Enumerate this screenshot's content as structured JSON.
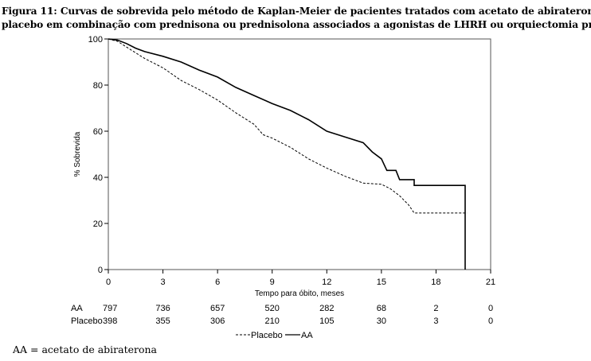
{
  "caption": {
    "line1": "Figura 11: Curvas de sobrevida pelo método de Kaplan-Meier de pacientes tratados com acetato de abiraterona ou",
    "line2": "placebo em combinação com prednisona ou prednisolona associados a agonistas de LHRH ou orquiectomia prévia."
  },
  "footnote": "AA = acetato de abiraterona",
  "chart_data": {
    "type": "line",
    "title": "",
    "xlabel": "Tempo para óbito, meses",
    "ylabel": "% Sobrevida",
    "xlim": [
      0,
      21
    ],
    "ylim": [
      0,
      100
    ],
    "xticks": [
      0,
      3,
      6,
      9,
      12,
      15,
      18,
      21
    ],
    "yticks": [
      0,
      20,
      40,
      60,
      80,
      100
    ],
    "grid": false,
    "legend": "bottom-center",
    "series": [
      {
        "name": "AA",
        "style": "solid",
        "color": "#000000",
        "points": [
          [
            0,
            100
          ],
          [
            0.5,
            99.5
          ],
          [
            1,
            98
          ],
          [
            1.5,
            96
          ],
          [
            2,
            94.5
          ],
          [
            3,
            92.5
          ],
          [
            4,
            90
          ],
          [
            5,
            86.5
          ],
          [
            6,
            83.5
          ],
          [
            7,
            79
          ],
          [
            8,
            75.5
          ],
          [
            9,
            72
          ],
          [
            10,
            69
          ],
          [
            11,
            65
          ],
          [
            12,
            60
          ],
          [
            13,
            57.5
          ],
          [
            14,
            55
          ],
          [
            14.5,
            51
          ],
          [
            15,
            48
          ],
          [
            15.3,
            43
          ],
          [
            15.8,
            43
          ],
          [
            16,
            39
          ],
          [
            16.8,
            39
          ],
          [
            16.8,
            36.5
          ],
          [
            19.6,
            36.5
          ],
          [
            19.6,
            0
          ]
        ]
      },
      {
        "name": "Placebo",
        "style": "dashed",
        "color": "#000000",
        "points": [
          [
            0,
            100
          ],
          [
            0.5,
            99
          ],
          [
            1,
            96.5
          ],
          [
            1.5,
            94
          ],
          [
            2,
            91.5
          ],
          [
            3,
            87.5
          ],
          [
            4,
            82
          ],
          [
            5,
            78
          ],
          [
            6,
            73.5
          ],
          [
            7,
            68
          ],
          [
            8,
            63
          ],
          [
            8.5,
            58.5
          ],
          [
            9,
            57
          ],
          [
            10,
            53
          ],
          [
            11,
            48
          ],
          [
            12,
            44
          ],
          [
            13,
            40.5
          ],
          [
            14,
            37.5
          ],
          [
            15,
            37
          ],
          [
            15.5,
            35
          ],
          [
            16,
            32
          ],
          [
            16.5,
            28
          ],
          [
            16.8,
            24.5
          ],
          [
            19.7,
            24.5
          ]
        ]
      }
    ],
    "risk_table": {
      "rows": [
        {
          "label": "AA",
          "values": [
            "797",
            "736",
            "657",
            "520",
            "282",
            "68",
            "2",
            "0"
          ]
        },
        {
          "label": "Placebo",
          "values": [
            "398",
            "355",
            "306",
            "210",
            "105",
            "30",
            "3",
            "0"
          ]
        }
      ]
    },
    "legend_entries": [
      {
        "label": "Placebo",
        "style": "dashed"
      },
      {
        "label": "AA",
        "style": "solid"
      }
    ]
  }
}
